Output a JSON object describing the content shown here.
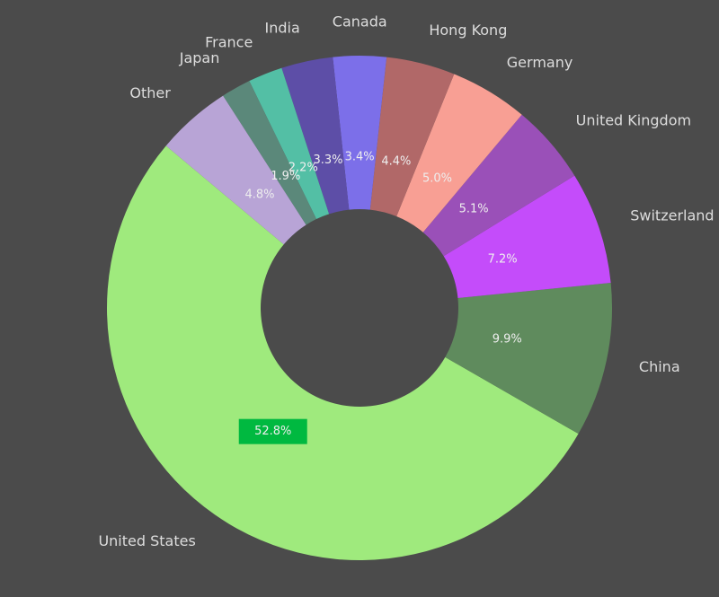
{
  "chart_data": {
    "type": "donut",
    "categories": [
      "United States",
      "China",
      "Switzerland",
      "United Kingdom",
      "Germany",
      "Hong Kong",
      "Canada",
      "India",
      "France",
      "Japan",
      "Other"
    ],
    "values": [
      52.8,
      9.9,
      7.2,
      5.1,
      5.0,
      4.4,
      3.4,
      3.3,
      2.2,
      1.9,
      4.8
    ],
    "value_labels": [
      "52.8%",
      "9.9%",
      "7.2%",
      "5.1%",
      "5.0%",
      "4.4%",
      "3.4%",
      "3.3%",
      "2.2%",
      "1.9%",
      "4.8%"
    ],
    "colors": [
      "#9fea7d",
      "#5f8b5d",
      "#c44cfa",
      "#9a50b8",
      "#f89f94",
      "#b16868",
      "#7c6fe9",
      "#5d4ea7",
      "#53bfa5",
      "#5b887a",
      "#b8a4d6"
    ],
    "highlighted": "United States",
    "highlight_color": "#00b940"
  }
}
